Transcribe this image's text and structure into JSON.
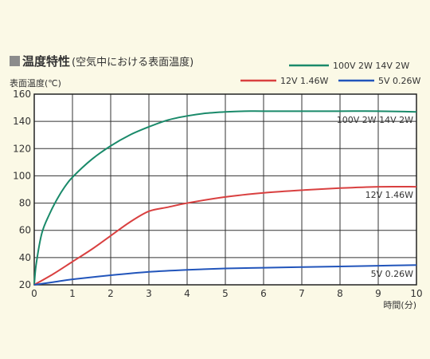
{
  "page": {
    "title_main": "温度特性",
    "title_sub": "(空気中における表面温度)"
  },
  "chart_data": {
    "type": "line",
    "title": "温度特性",
    "subtitle": "(空気中における表面温度)",
    "xlabel": "時間(分)",
    "ylabel": "表面温度(℃)",
    "xlim": [
      0,
      10
    ],
    "ylim": [
      20,
      160
    ],
    "x_ticks": [
      "0",
      "1",
      "2",
      "3",
      "4",
      "5",
      "6",
      "7",
      "8",
      "9",
      "10"
    ],
    "y_ticks": [
      "20",
      "40",
      "60",
      "80",
      "100",
      "120",
      "140",
      "160"
    ],
    "grid": true,
    "legend_position": "top-right",
    "series": [
      {
        "name": "100V 2W 14V 2W",
        "end_label": "100V 2W 14V 2W",
        "color": "#1a8a6a",
        "points": [
          [
            0,
            20
          ],
          [
            0.05,
            35
          ],
          [
            0.2,
            58
          ],
          [
            0.4,
            72
          ],
          [
            0.6,
            83
          ],
          [
            0.8,
            92
          ],
          [
            1,
            99
          ],
          [
            1.5,
            112
          ],
          [
            2,
            122
          ],
          [
            2.5,
            130
          ],
          [
            3,
            136
          ],
          [
            3.5,
            141
          ],
          [
            4,
            144
          ],
          [
            4.5,
            146
          ],
          [
            5,
            147
          ],
          [
            5.5,
            147.5
          ],
          [
            6,
            147.5
          ],
          [
            7,
            147.5
          ],
          [
            8,
            147.5
          ],
          [
            9,
            147.5
          ],
          [
            10,
            147
          ]
        ]
      },
      {
        "name": "12V 1.46W",
        "end_label": "12V 1.46W",
        "color": "#d94040",
        "points": [
          [
            0,
            20
          ],
          [
            0.5,
            28
          ],
          [
            1,
            37
          ],
          [
            1.5,
            46
          ],
          [
            2,
            56
          ],
          [
            2.5,
            66
          ],
          [
            3,
            74
          ],
          [
            3.5,
            77
          ],
          [
            4,
            80
          ],
          [
            5,
            84.5
          ],
          [
            6,
            87.5
          ],
          [
            7,
            89.5
          ],
          [
            8,
            91
          ],
          [
            9,
            92
          ],
          [
            10,
            92
          ]
        ]
      },
      {
        "name": "5V 0.26W",
        "end_label": "5V 0.26W",
        "color": "#2255bb",
        "points": [
          [
            0,
            20
          ],
          [
            0.5,
            22
          ],
          [
            1,
            24
          ],
          [
            2,
            27
          ],
          [
            3,
            29.5
          ],
          [
            4,
            31
          ],
          [
            5,
            32
          ],
          [
            6,
            32.5
          ],
          [
            7,
            33
          ],
          [
            8,
            33.5
          ],
          [
            9,
            34
          ],
          [
            10,
            34.5
          ]
        ]
      }
    ]
  }
}
